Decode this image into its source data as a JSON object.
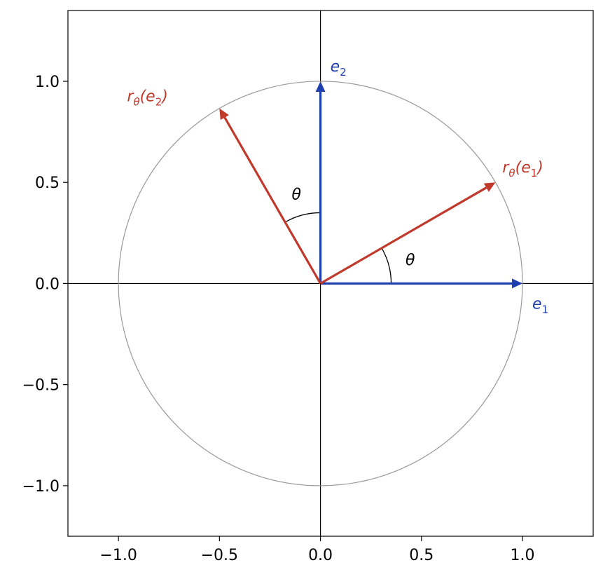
{
  "chart_data": {
    "type": "vector",
    "xlim": [
      -1.25,
      1.35
    ],
    "ylim": [
      -1.25,
      1.35
    ],
    "xticks": [
      {
        "value": -1,
        "label": "−1.0"
      },
      {
        "value": -0.5,
        "label": "−0.5"
      },
      {
        "value": 0,
        "label": "0.0"
      },
      {
        "value": 0.5,
        "label": "0.5"
      },
      {
        "value": 1,
        "label": "1.0"
      }
    ],
    "yticks": [
      {
        "value": -1,
        "label": "−1.0"
      },
      {
        "value": -0.5,
        "label": "−0.5"
      },
      {
        "value": 0,
        "label": "0.0"
      },
      {
        "value": 0.5,
        "label": "0.5"
      },
      {
        "value": 1,
        "label": "1.0"
      }
    ],
    "circle": {
      "radius": 1,
      "color": "#999999"
    },
    "vectors": [
      {
        "label": [
          "e",
          "1"
        ],
        "x": 1,
        "y": 0,
        "color": "#1f3faf"
      },
      {
        "label": [
          "e",
          "2"
        ],
        "x": 0,
        "y": 1,
        "color": "#1f3faf"
      },
      {
        "label": [
          "r",
          "θ",
          "(e",
          "1",
          ")"
        ],
        "x": 0.866,
        "y": 0.5,
        "color": "#c0392b"
      },
      {
        "label": [
          "r",
          "θ",
          "(e",
          "2",
          ")"
        ],
        "x": -0.5,
        "y": 0.866,
        "color": "#c0392b"
      }
    ],
    "angles": [
      {
        "label": "θ",
        "radius": 0.35,
        "from": 0,
        "to": 30
      },
      {
        "label": "θ",
        "radius": 0.35,
        "from": 90,
        "to": 120
      }
    ]
  }
}
